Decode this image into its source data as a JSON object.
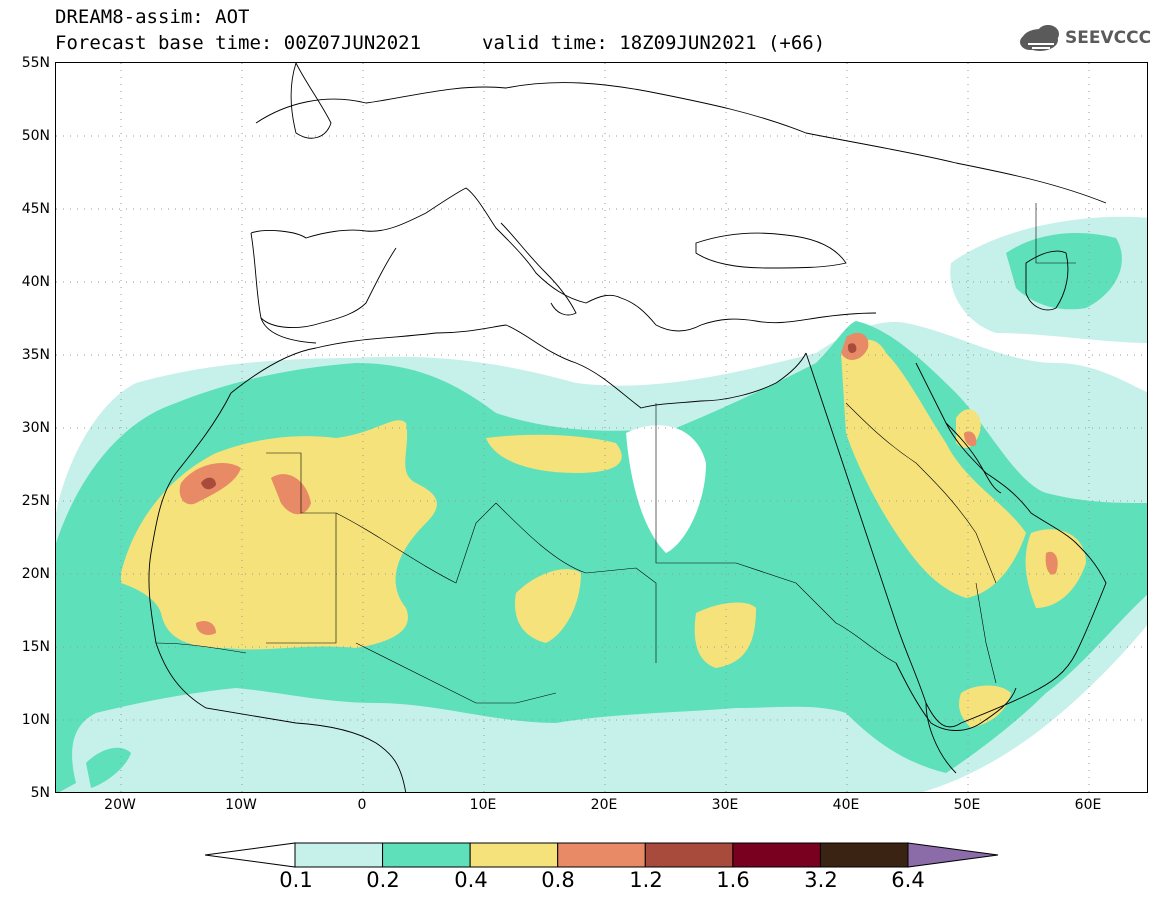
{
  "header": {
    "line1": "DREAM8-assim: AOT",
    "line2": "Forecast base time: 00Z07JUN2021",
    "line2b": "valid time: 18Z09JUN2021 (+66)",
    "logo_text": "SEEVCCC"
  },
  "map": {
    "lat_labels": [
      "55N",
      "50N",
      "45N",
      "40N",
      "35N",
      "30N",
      "25N",
      "20N",
      "15N",
      "10N",
      "5N"
    ],
    "lon_labels": [
      "20W",
      "10W",
      "0",
      "10E",
      "20E",
      "30E",
      "40E",
      "50E",
      "60E"
    ],
    "colors": {
      "c1": "#c6f0ea",
      "c2": "#5ee0bb",
      "c3": "#f5e27a",
      "c4": "#e88a66",
      "c5": "#a84b3c",
      "c6": "#7a0020",
      "c7": "#3b2313",
      "c8": "#8b6ba8"
    }
  },
  "colorbar": {
    "labels": [
      "0.1",
      "0.2",
      "0.4",
      "0.8",
      "1.2",
      "1.6",
      "3.2",
      "6.4"
    ],
    "colors": [
      "#c6f0ea",
      "#5ee0bb",
      "#f5e27a",
      "#e88a66",
      "#a84b3c",
      "#7a0020",
      "#3b2313",
      "#8b6ba8"
    ]
  }
}
